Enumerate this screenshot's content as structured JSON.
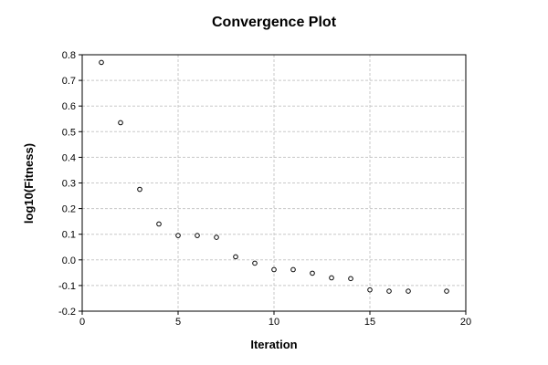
{
  "chart_data": {
    "type": "scatter",
    "title": "Convergence Plot",
    "xlabel": "Iteration",
    "ylabel": "log10(Fitness)",
    "xlim": [
      0,
      20
    ],
    "ylim": [
      -0.2,
      0.8
    ],
    "xticks": [
      0,
      5,
      10,
      15,
      20
    ],
    "xtick_labels": [
      "0",
      "5",
      "10",
      "15",
      "20"
    ],
    "yticks": [
      -0.2,
      -0.1,
      0.0,
      0.1,
      0.2,
      0.3,
      0.4,
      0.5,
      0.6,
      0.7,
      0.8
    ],
    "ytick_labels": [
      "-0.2",
      "-0.1",
      "0.0",
      "0.1",
      "0.2",
      "0.3",
      "0.4",
      "0.5",
      "0.6",
      "0.7",
      "0.8"
    ],
    "grid": true,
    "legend": "none",
    "marker": "open-circle",
    "marker_color": "#000000",
    "grid_color": "#c8c8c8",
    "x": [
      1,
      2,
      3,
      4,
      5,
      6,
      7,
      8,
      9,
      10,
      11,
      12,
      13,
      14,
      15,
      16,
      17,
      19
    ],
    "y": [
      0.77,
      0.535,
      0.275,
      0.14,
      0.095,
      0.095,
      0.088,
      0.012,
      -0.013,
      -0.038,
      -0.038,
      -0.052,
      -0.07,
      -0.073,
      -0.117,
      -0.122,
      -0.122,
      -0.122
    ]
  }
}
